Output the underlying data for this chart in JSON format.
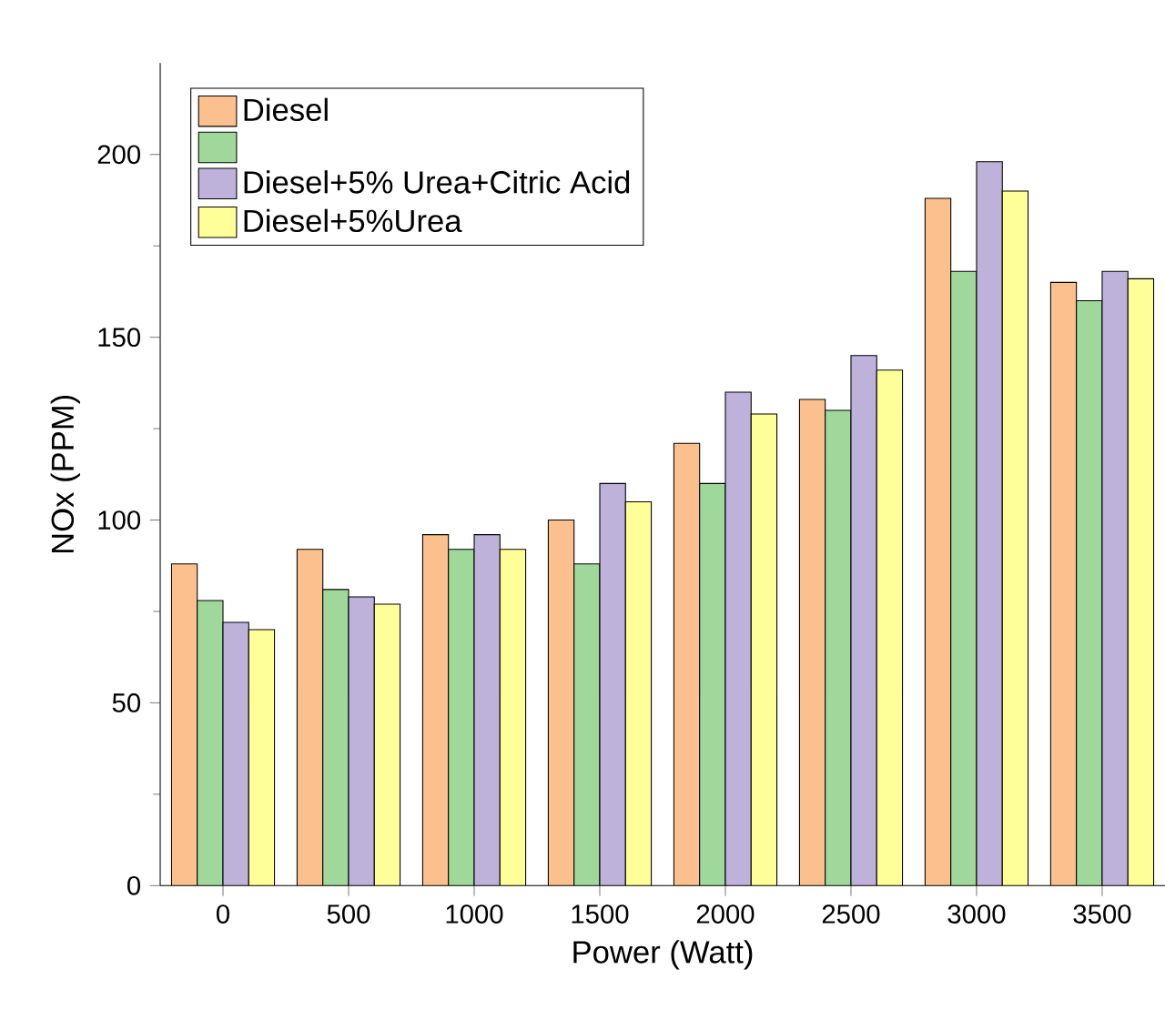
{
  "chart_data": {
    "type": "bar",
    "xlabel": "Power (Watt)",
    "ylabel": "NOx (PPM)",
    "categories": [
      "0",
      "500",
      "1000",
      "1500",
      "2000",
      "2500",
      "3000",
      "3500"
    ],
    "ylim": [
      0,
      225
    ],
    "yticks": [
      0,
      50,
      100,
      150,
      200
    ],
    "legend": "top left",
    "grid": false,
    "series": [
      {
        "name": "Diesel",
        "color": "#fbc08e",
        "values": [
          88,
          92,
          96,
          100,
          121,
          133,
          188,
          165
        ]
      },
      {
        "color": "#a0d89c",
        "values": [
          78,
          81,
          92,
          88,
          110,
          130,
          168,
          160
        ]
      },
      {
        "name": "Diesel+5% Urea+Citric Acid",
        "color": "#bfb2da",
        "values": [
          72,
          79,
          96,
          110,
          135,
          145,
          198,
          168
        ]
      },
      {
        "name": "Diesel+5%Urea",
        "color": "#ffff99",
        "values": [
          70,
          77,
          92,
          105,
          129,
          141,
          190,
          166
        ]
      }
    ]
  }
}
